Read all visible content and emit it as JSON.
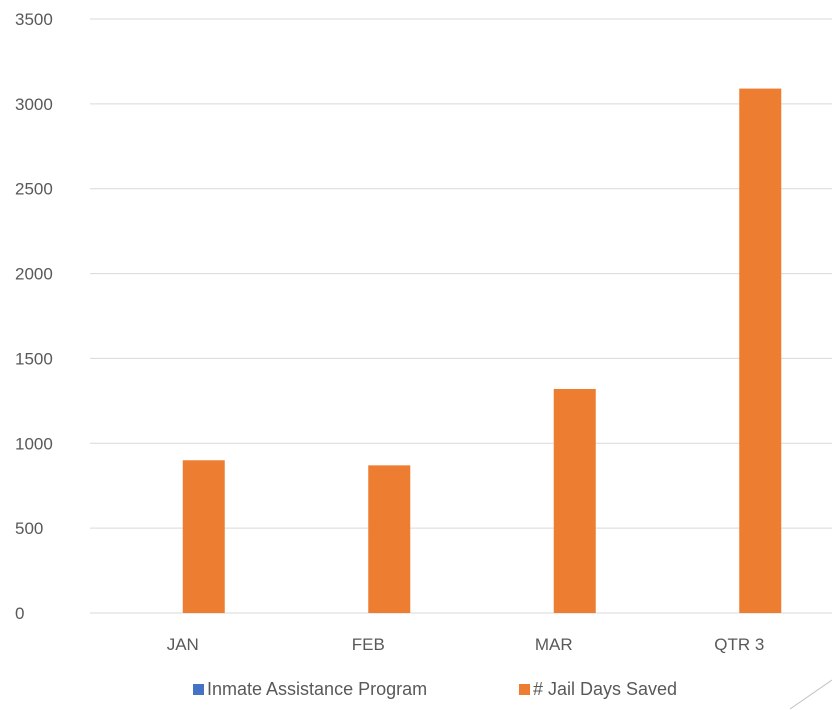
{
  "chart_data": {
    "type": "bar",
    "categories": [
      "JAN",
      "FEB",
      "MAR",
      "QTR 3"
    ],
    "series": [
      {
        "name": "Inmate Assistance Program",
        "color": "#4472c4",
        "values": [
          0,
          0,
          0,
          0
        ]
      },
      {
        "name": "# Jail Days Saved",
        "color": "#ed7d31",
        "values": [
          900,
          870,
          1320,
          3090
        ]
      }
    ],
    "yticks": [
      0,
      500,
      1000,
      1500,
      2000,
      2500,
      3000,
      3500
    ],
    "ylim": [
      0,
      3500
    ],
    "grid": true,
    "legend": "bottom"
  }
}
